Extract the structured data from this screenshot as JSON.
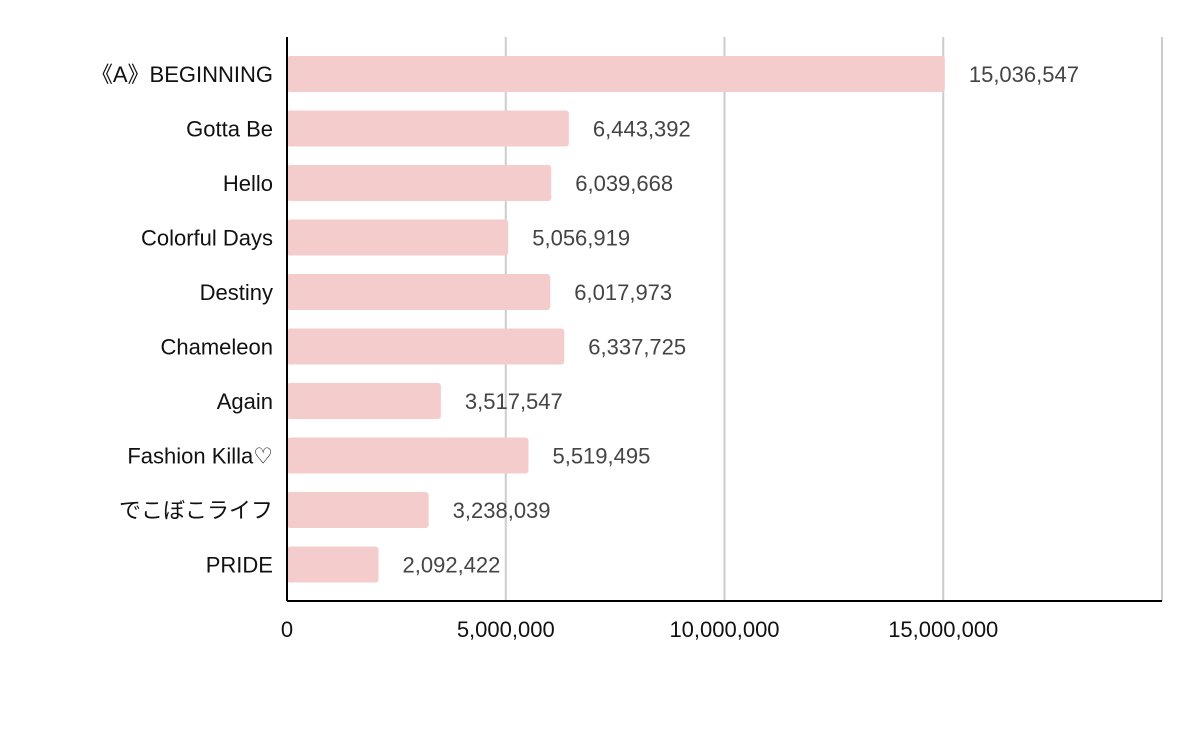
{
  "chart_data": {
    "type": "bar",
    "orientation": "horizontal",
    "categories": [
      "《A》BEGINNING",
      "Gotta Be",
      "Hello",
      "Colorful Days",
      "Destiny",
      "Chameleon",
      "Again",
      "Fashion Killa♡",
      "でこぼこライフ",
      "PRIDE"
    ],
    "values": [
      15036547,
      6443392,
      6039668,
      5056919,
      6017973,
      6337725,
      3517547,
      5519495,
      3238039,
      2092422
    ],
    "value_labels": [
      "15,036,547",
      "6,443,392",
      "6,039,668",
      "5,056,919",
      "6,017,973",
      "6,337,725",
      "3,517,547",
      "5,519,495",
      "3,238,039",
      "2,092,422"
    ],
    "xlim": [
      0,
      20000000
    ],
    "x_ticks": [
      0,
      5000000,
      10000000,
      15000000
    ],
    "x_tick_labels": [
      "0",
      "5,000,000",
      "10,000,000",
      "15,000,000"
    ],
    "grid": true,
    "legend": "none",
    "bar_color": "#f4cccc",
    "grid_color": "#cccccc",
    "axis_color": "#000000",
    "title": "",
    "xlabel": "",
    "ylabel": ""
  }
}
